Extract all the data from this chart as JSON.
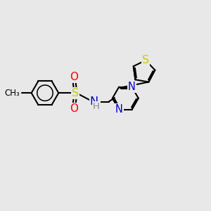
{
  "background_color": "#e8e8e8",
  "bond_color": "#000000",
  "bond_width": 1.5,
  "S_color": "#cccc00",
  "N_color": "#0000cc",
  "O_color": "#ff0000",
  "H_color": "#888888",
  "figsize": [
    3.0,
    3.0
  ],
  "dpi": 100,
  "xlim": [
    0,
    10
  ],
  "ylim": [
    0,
    10
  ]
}
